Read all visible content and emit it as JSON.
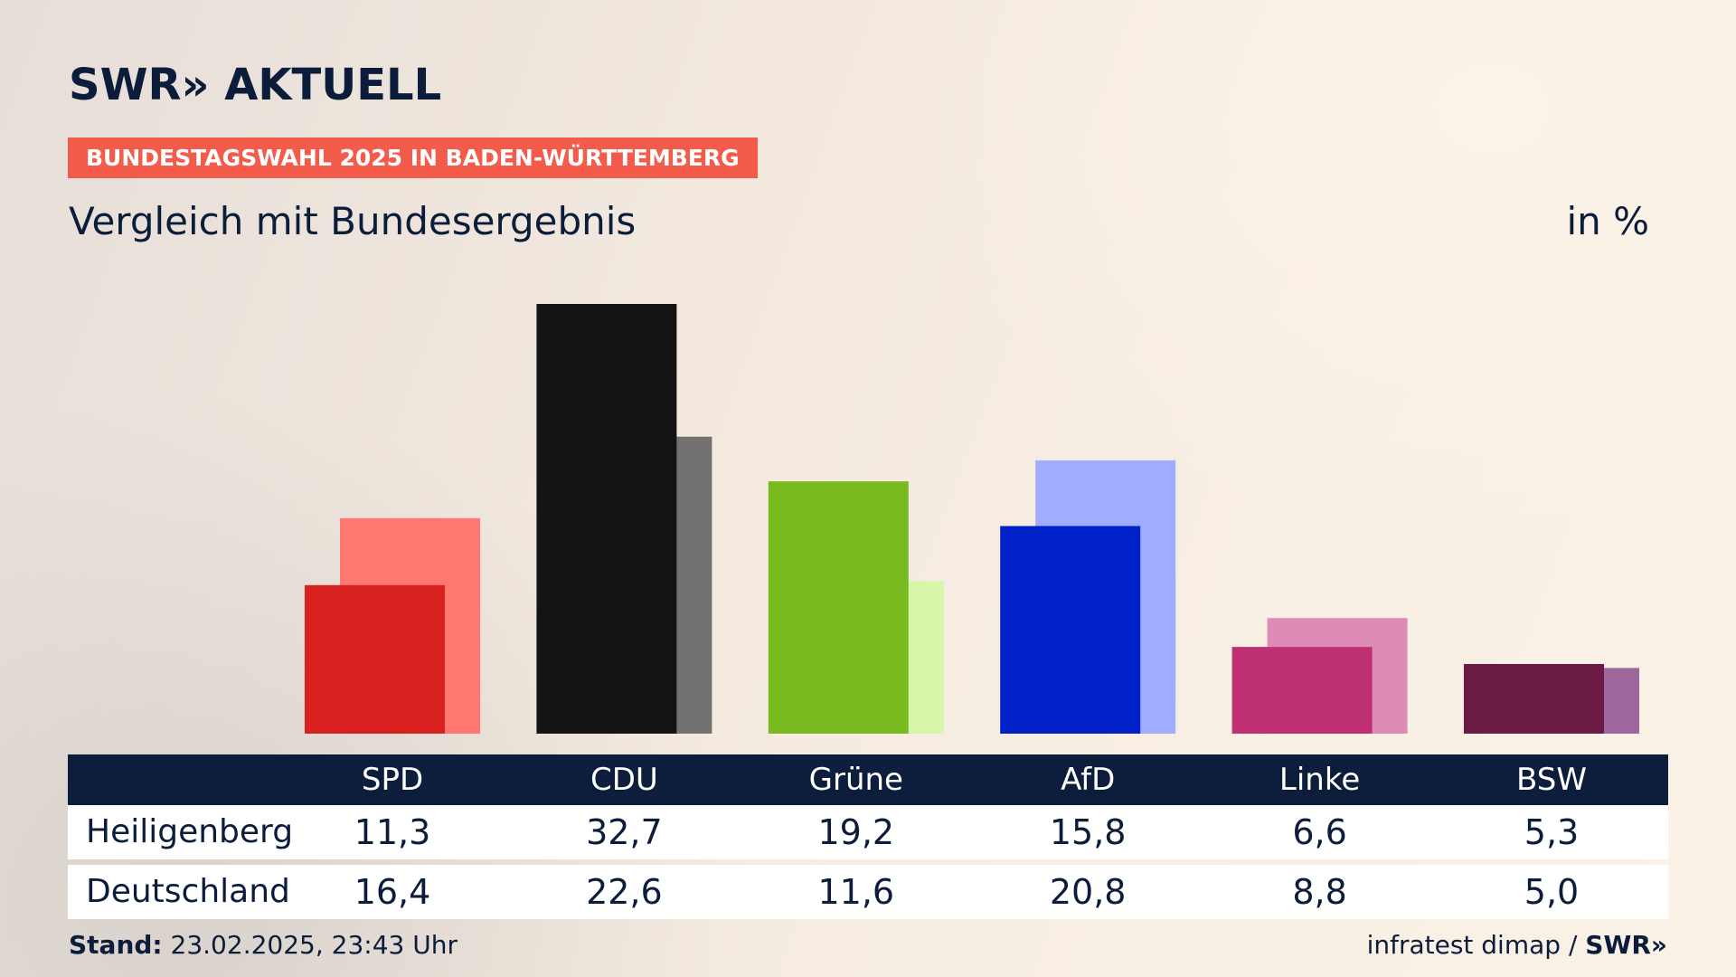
{
  "brand": {
    "logo_text": "SWR» AKTUELL",
    "footer_logo": "SWR»"
  },
  "topic": "BUNDESTAGSWAHL 2025 IN BADEN-WÜRTTEMBERG",
  "subtitle": "Vergleich mit Bundesergebnis",
  "unit": "in %",
  "footer": {
    "stand_label": "Stand:",
    "stand_value": "23.02.2025, 23:43 Uhr",
    "source": "infratest dimap /"
  },
  "chart_data": {
    "type": "bar",
    "categories": [
      "SPD",
      "CDU",
      "Grüne",
      "AfD",
      "Linke",
      "BSW"
    ],
    "series": [
      {
        "name": "Heiligenberg",
        "values": [
          11.3,
          32.7,
          19.2,
          15.8,
          6.6,
          5.3
        ],
        "display": [
          "11,3",
          "32,7",
          "19,2",
          "15,8",
          "6,6",
          "5,3"
        ]
      },
      {
        "name": "Deutschland",
        "values": [
          16.4,
          22.6,
          11.6,
          20.8,
          8.8,
          5.0
        ],
        "display": [
          "16,4",
          "22,6",
          "11,6",
          "20,8",
          "8,8",
          "5,0"
        ]
      }
    ],
    "colors": {
      "local": [
        "#d8201f",
        "#141414",
        "#79bb1f",
        "#0020c8",
        "#bf2f74",
        "#6b1b43"
      ],
      "national": [
        "#ff7771",
        "#747271",
        "#d8f6a9",
        "#a0acfe",
        "#de8cb6",
        "#9d669d"
      ]
    },
    "ylim": [
      0,
      32.7
    ]
  }
}
